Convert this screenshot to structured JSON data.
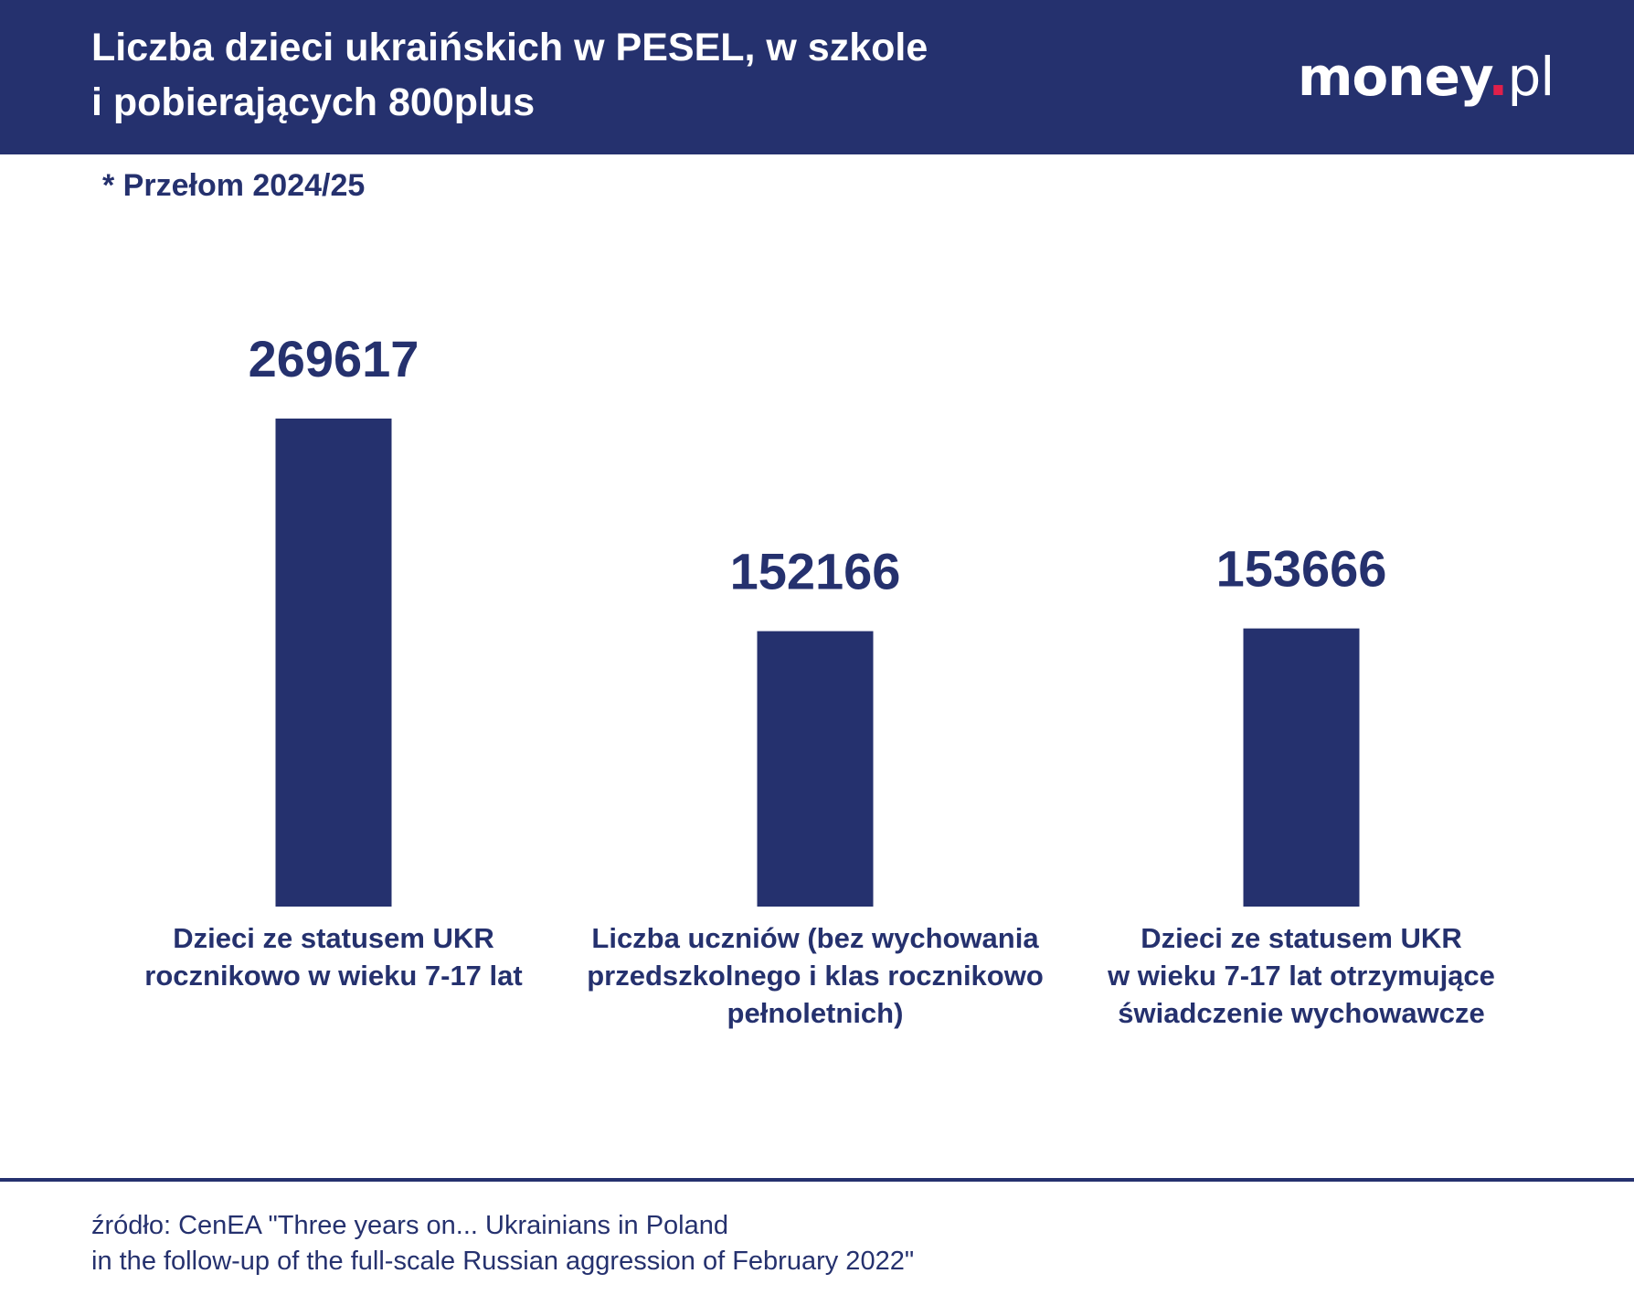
{
  "header": {
    "title_line1": "Liczba dzieci ukraińskich w PESEL, w szkole",
    "title_line2": "i pobierających 800plus",
    "logo": "money.pl"
  },
  "subtitle": "*  Przełom 2024/25",
  "colors": {
    "bar": "#25316e",
    "header_bg": "#25316e",
    "logo_dot": "#e0204a"
  },
  "chart_data": {
    "type": "bar",
    "title": "Liczba dzieci ukraińskich w PESEL, w szkole i pobierających 800plus",
    "subtitle": "*  Przełom 2024/25",
    "categories": [
      [
        "Dzieci ze statusem UKR",
        "rocznikowo w wieku 7-17 lat"
      ],
      [
        "Liczba uczniów (bez wychowania",
        "przedszkolnego i klas rocznikowo",
        "pełnoletnich)"
      ],
      [
        "Dzieci ze statusem UKR",
        "w wieku 7-17 lat otrzymujące",
        "świadczenie wychowawcze"
      ]
    ],
    "values": [
      269617,
      152166,
      153666
    ],
    "value_labels": [
      "269617",
      "152166",
      "153666"
    ],
    "xlabel": "",
    "ylabel": "",
    "ylim": [
      0,
      269617
    ],
    "grid": false
  },
  "footer": {
    "source_line1": "źródło: CenEA \"Three years on... Ukrainians in Poland",
    "source_line2": "in the follow-up of the full-scale Russian aggression of February 2022\""
  }
}
